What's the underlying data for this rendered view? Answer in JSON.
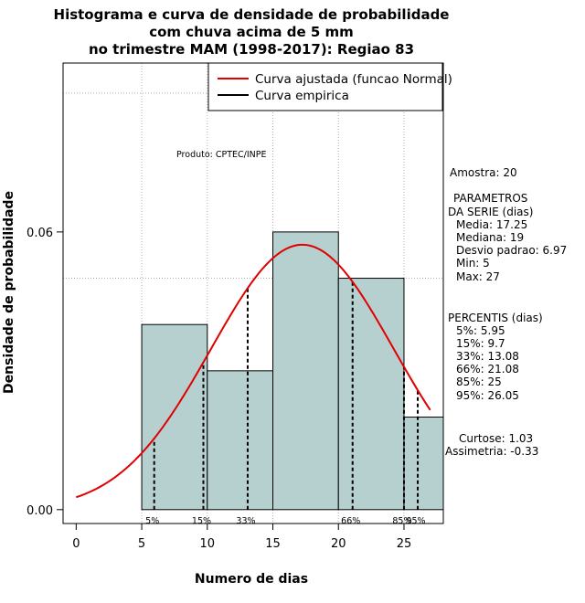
{
  "chart_data": {
    "type": "bar",
    "title_lines": [
      "Histograma e curva de densidade de probabilidade",
      "com chuva acima de 5 mm",
      "no trimestre MAM (1998-2017): Regiao 83"
    ],
    "xlabel": "Numero de dias",
    "ylabel": "Densidade de probabilidade",
    "xlim": [
      -1,
      28
    ],
    "ylim": [
      -0.003,
      0.0965
    ],
    "x_ticks": [
      "0",
      "5",
      "10",
      "15",
      "20",
      "25"
    ],
    "x_tick_values": [
      0,
      5,
      10,
      15,
      20,
      25
    ],
    "y_ticks": [
      "0.00",
      "0.06"
    ],
    "y_tick_values": [
      0,
      0.06
    ],
    "grid": true,
    "grid_x": [
      5,
      10,
      15,
      20,
      25
    ],
    "grid_y": [
      0.05,
      0.09
    ],
    "bin_edges": [
      5,
      10,
      15,
      20,
      25,
      28
    ],
    "values": [
      0.04,
      0.03,
      0.06,
      0.05,
      0.02
    ],
    "bar_color": "#b6cfcf",
    "curve_color": "#e00000",
    "curve": {
      "mean": 17.25,
      "sd": 6.97,
      "x_range": [
        0,
        27
      ]
    },
    "percentile_lines": [
      {
        "label": "5%",
        "x": 5.95
      },
      {
        "label": "15%",
        "x": 9.7
      },
      {
        "label": "33%",
        "x": 13.08
      },
      {
        "label": "66%",
        "x": 21.08
      },
      {
        "label": "85%",
        "x": 25
      },
      {
        "label": "95%",
        "x": 26.05
      }
    ],
    "legend": {
      "position": "top-right",
      "entries": [
        {
          "label": "Curva ajustada (funcao Normal)",
          "color": "#e00000"
        },
        {
          "label": "Curva empirica",
          "color": "#000000"
        }
      ]
    },
    "annotations": {
      "produto": "Produto: CPTEC/INPE",
      "amostra": "Amostra: 20",
      "param_title_1": "PARAMETROS",
      "param_title_2": "DA SERIE (dias)",
      "media": "Media: 17.25",
      "mediana": "Mediana: 19",
      "desvio": "Desvio padrao: 6.97",
      "min": "Min: 5",
      "max": "Max: 27",
      "perc_title": "PERCENTIS (dias)",
      "p5": "5%: 5.95",
      "p15": "15%: 9.7",
      "p33": "33%: 13.08",
      "p66": "66%: 21.08",
      "p85": "85%: 25",
      "p95": "95%: 26.05",
      "curtose": "Curtose: 1.03",
      "assimetria": "Assimetria: -0.33"
    }
  }
}
